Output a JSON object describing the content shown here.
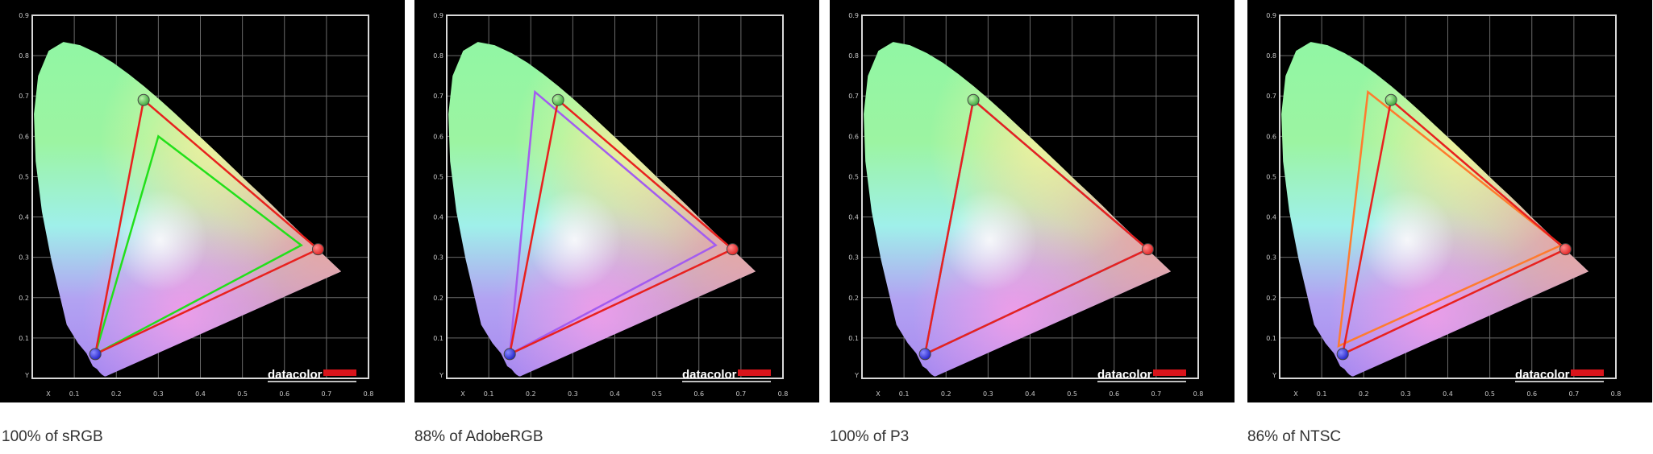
{
  "colors": {
    "page_background": "#ffffff",
    "plot_background": "#000000",
    "grid": "#6a6a6a",
    "frame": "#d8d8d8",
    "display_gamut": "#e8211e",
    "logo_bar": "#d8141b"
  },
  "logo_text": "datacolor",
  "chart_data": [
    {
      "type": "scatter",
      "caption": "100% of sRGB",
      "xlim": [
        0,
        0.8
      ],
      "ylim": [
        0,
        0.9
      ],
      "x_ticks": [
        "X",
        "0.1",
        "0.2",
        "0.3",
        "0.4",
        "0.5",
        "0.6",
        "0.7",
        "0.8"
      ],
      "y_ticks": [
        "Y",
        "0.1",
        "0.2",
        "0.3",
        "0.4",
        "0.5",
        "0.6",
        "0.7",
        "0.8",
        "0.9"
      ],
      "grid": true,
      "display_gamut": [
        [
          0.68,
          0.32
        ],
        [
          0.265,
          0.69
        ],
        [
          0.15,
          0.06
        ]
      ],
      "reference_gamut": {
        "color": "#22e01a",
        "points": [
          [
            0.64,
            0.33
          ],
          [
            0.3,
            0.6
          ],
          [
            0.15,
            0.06
          ]
        ]
      }
    },
    {
      "type": "scatter",
      "caption": "88% of AdobeRGB",
      "xlim": [
        0,
        0.8
      ],
      "ylim": [
        0,
        0.9
      ],
      "x_ticks": [
        "X",
        "0.1",
        "0.2",
        "0.3",
        "0.4",
        "0.5",
        "0.6",
        "0.7",
        "0.8"
      ],
      "y_ticks": [
        "Y",
        "0.1",
        "0.2",
        "0.3",
        "0.4",
        "0.5",
        "0.6",
        "0.7",
        "0.8",
        "0.9"
      ],
      "grid": true,
      "display_gamut": [
        [
          0.68,
          0.32
        ],
        [
          0.265,
          0.69
        ],
        [
          0.15,
          0.06
        ]
      ],
      "reference_gamut": {
        "color": "#a35cf0",
        "points": [
          [
            0.64,
            0.33
          ],
          [
            0.21,
            0.71
          ],
          [
            0.15,
            0.06
          ]
        ]
      }
    },
    {
      "type": "scatter",
      "caption": "100% of P3",
      "xlim": [
        0,
        0.8
      ],
      "ylim": [
        0,
        0.9
      ],
      "x_ticks": [
        "X",
        "0.1",
        "0.2",
        "0.3",
        "0.4",
        "0.5",
        "0.6",
        "0.7",
        "0.8"
      ],
      "y_ticks": [
        "Y",
        "0.1",
        "0.2",
        "0.3",
        "0.4",
        "0.5",
        "0.6",
        "0.7",
        "0.8",
        "0.9"
      ],
      "grid": true,
      "display_gamut": [
        [
          0.68,
          0.32
        ],
        [
          0.265,
          0.69
        ],
        [
          0.15,
          0.06
        ]
      ],
      "reference_gamut": {
        "color": "#3d86f0",
        "points": [
          [
            0.68,
            0.32
          ],
          [
            0.265,
            0.69
          ],
          [
            0.15,
            0.06
          ]
        ]
      }
    },
    {
      "type": "scatter",
      "caption": "86% of NTSC",
      "xlim": [
        0,
        0.8
      ],
      "ylim": [
        0,
        0.9
      ],
      "x_ticks": [
        "X",
        "0.1",
        "0.2",
        "0.3",
        "0.4",
        "0.5",
        "0.6",
        "0.7",
        "0.8"
      ],
      "y_ticks": [
        "Y",
        "0.1",
        "0.2",
        "0.3",
        "0.4",
        "0.5",
        "0.6",
        "0.7",
        "0.8",
        "0.9"
      ],
      "grid": true,
      "display_gamut": [
        [
          0.68,
          0.32
        ],
        [
          0.265,
          0.69
        ],
        [
          0.15,
          0.06
        ]
      ],
      "reference_gamut": {
        "color": "#ff7b2e",
        "points": [
          [
            0.67,
            0.33
          ],
          [
            0.21,
            0.71
          ],
          [
            0.14,
            0.08
          ]
        ]
      }
    }
  ]
}
